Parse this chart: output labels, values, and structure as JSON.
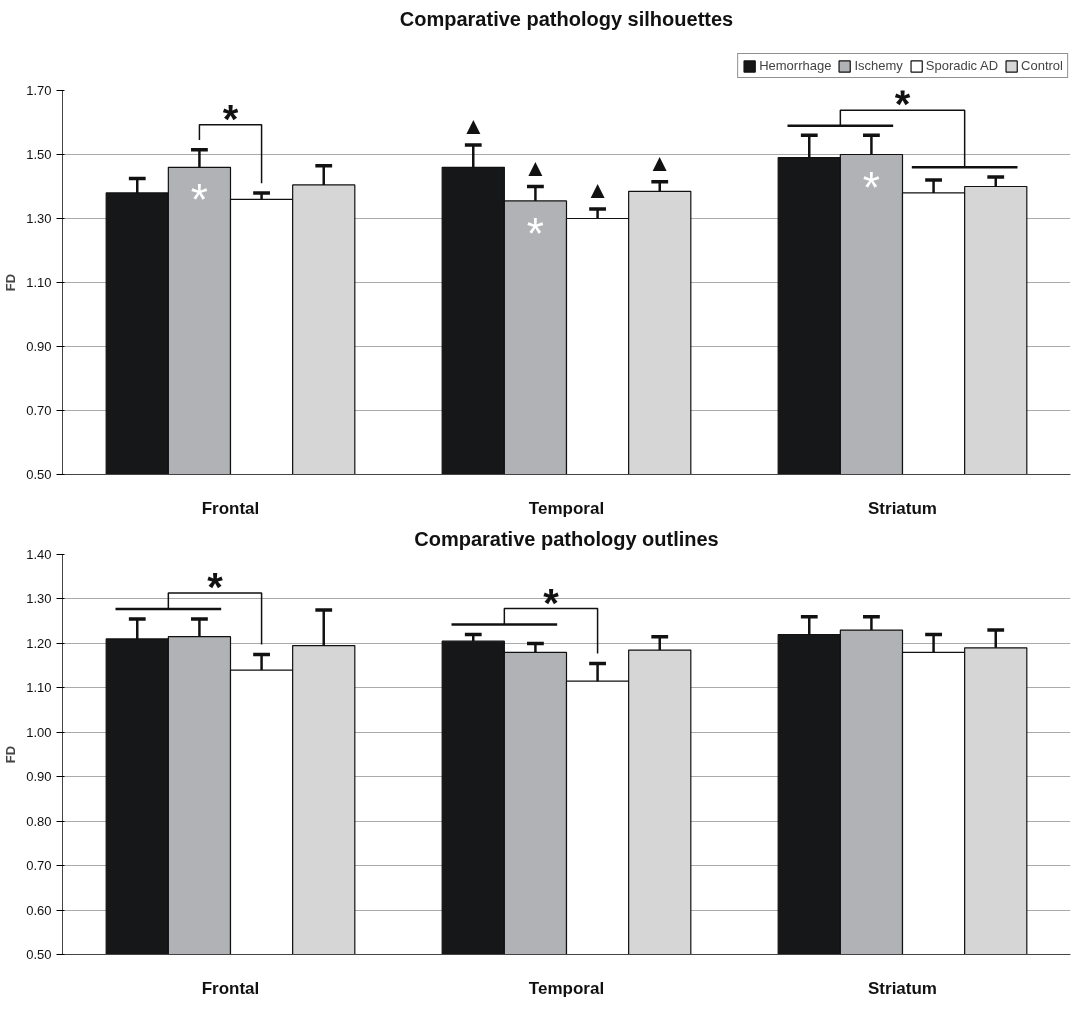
{
  "chart_data": [
    {
      "type": "bar",
      "title": "Comparative pathology silhouettes",
      "ylabel": "FD",
      "categories": [
        "Frontal",
        "Temporal",
        "Striatum"
      ],
      "ylim": [
        0.5,
        1.7
      ],
      "yticks": [
        {
          "value": 0.5,
          "label": "0.50"
        },
        {
          "value": 0.7,
          "label": "0.70"
        },
        {
          "value": 0.9,
          "label": "0.90"
        },
        {
          "value": 1.1,
          "label": "1.10"
        },
        {
          "value": 1.3,
          "label": "1.30"
        },
        {
          "value": 1.5,
          "label": "1.50"
        },
        {
          "value": 1.7,
          "label": "1.70"
        }
      ],
      "grid": "y",
      "legend": "top right",
      "series": [
        {
          "name": "Hemorrhage",
          "color": "#161718",
          "values": [
            1.38,
            1.46,
            1.49
          ],
          "errors": [
            [
              1.38,
              1.425
            ],
            [
              1.46,
              1.53
            ],
            [
              1.49,
              1.56
            ]
          ]
        },
        {
          "name": "Ischemy",
          "color": "#b1b2b5",
          "values": [
            1.46,
            1.355,
            1.5
          ],
          "errors": [
            [
              1.46,
              1.515
            ],
            [
              1.355,
              1.4
            ],
            [
              1.5,
              1.56
            ]
          ]
        },
        {
          "name": "Sporadic AD",
          "color": "#ffffff",
          "values": [
            1.36,
            1.3,
            1.38
          ],
          "errors": [
            [
              1.36,
              1.38
            ],
            [
              1.3,
              1.33
            ],
            [
              1.38,
              1.42
            ]
          ]
        },
        {
          "name": "Control",
          "color": "#d6d6d6",
          "values": [
            1.405,
            1.385,
            1.4
          ],
          "errors": [
            [
              1.405,
              1.465
            ],
            [
              1.385,
              1.415
            ],
            [
              1.4,
              1.43
            ]
          ]
        }
      ],
      "annotations": [
        "*",
        "*",
        "*",
        "*",
        "*",
        "▲",
        "▲",
        "▲",
        "▲"
      ]
    },
    {
      "type": "bar",
      "title": "Comparative pathology outlines",
      "ylabel": "FD",
      "categories": [
        "Frontal",
        "Temporal",
        "Striatum"
      ],
      "ylim": [
        0.5,
        1.4
      ],
      "yticks": [
        {
          "value": 0.5,
          "label": "0.50"
        },
        {
          "value": 0.6,
          "label": "0.60"
        },
        {
          "value": 0.7,
          "label": "0.70"
        },
        {
          "value": 0.8,
          "label": "0.80"
        },
        {
          "value": 0.9,
          "label": "0.90"
        },
        {
          "value": 1.0,
          "label": "1.00"
        },
        {
          "value": 1.1,
          "label": "1.10"
        },
        {
          "value": 1.2,
          "label": "1.20"
        },
        {
          "value": 1.3,
          "label": "1.30"
        },
        {
          "value": 1.4,
          "label": "1.40"
        }
      ],
      "grid": "y",
      "series": [
        {
          "color": "#161718",
          "values": [
            1.21,
            1.205,
            1.22
          ],
          "errors": [
            [
              1.21,
              1.255
            ],
            [
              1.205,
              1.22
            ],
            [
              1.22,
              1.26
            ]
          ]
        },
        {
          "color": "#b1b2b5",
          "values": [
            1.215,
            1.18,
            1.23
          ],
          "errors": [
            [
              1.215,
              1.255
            ],
            [
              1.18,
              1.2
            ],
            [
              1.23,
              1.26
            ]
          ]
        },
        {
          "color": "#ffffff",
          "values": [
            1.14,
            1.115,
            1.18
          ],
          "errors": [
            [
              1.14,
              1.175
            ],
            [
              1.115,
              1.155
            ],
            [
              1.18,
              1.22
            ]
          ]
        },
        {
          "color": "#d6d6d6",
          "values": [
            1.195,
            1.185,
            1.19
          ],
          "errors": [
            [
              1.195,
              1.275
            ],
            [
              1.185,
              1.215
            ],
            [
              1.19,
              1.23
            ]
          ]
        }
      ],
      "annotations": [
        "*",
        "*"
      ]
    }
  ]
}
